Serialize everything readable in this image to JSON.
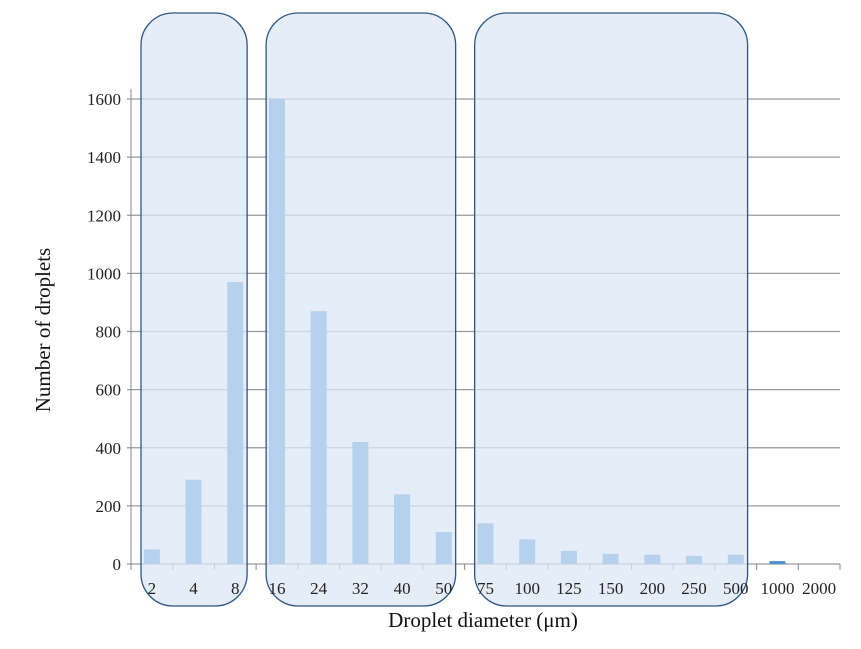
{
  "chart_data": {
    "type": "bar",
    "title": "",
    "xlabel": "Droplet diameter (μm)",
    "ylabel": "Number of droplets",
    "categories": [
      "2",
      "4",
      "8",
      "16",
      "24",
      "32",
      "40",
      "50",
      "75",
      "100",
      "125",
      "150",
      "200",
      "250",
      "500",
      "1000",
      "2000"
    ],
    "values": [
      50,
      290,
      970,
      1600,
      870,
      420,
      240,
      110,
      140,
      85,
      45,
      35,
      32,
      28,
      32,
      10,
      0
    ],
    "ylim": [
      0,
      1600
    ],
    "yticks": [
      0,
      200,
      400,
      600,
      800,
      1000,
      1200,
      1400,
      1600
    ],
    "grid": true,
    "bar_color": "#4a90d2",
    "highlight_regions": [
      {
        "from": "2",
        "to": "8",
        "fill": "#dbe7f5",
        "stroke": "#2f5687"
      },
      {
        "from": "16",
        "to": "50",
        "fill": "#dbe7f5",
        "stroke": "#2f5687"
      },
      {
        "from": "75",
        "to": "500",
        "fill": "#dbe7f5",
        "stroke": "#2f5687"
      }
    ]
  }
}
